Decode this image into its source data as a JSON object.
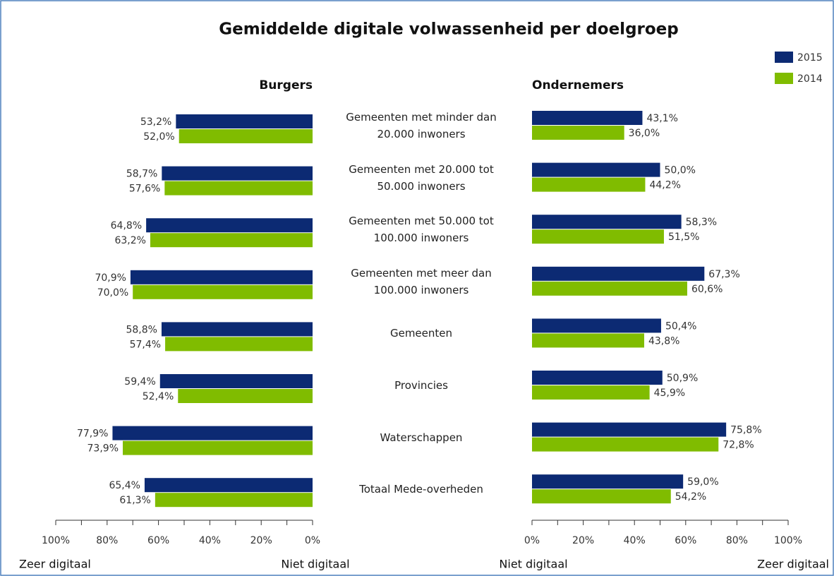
{
  "chart_data": {
    "type": "butterfly",
    "title": "Gemiddelde digitale volwassenheid per doelgroep",
    "categories": [
      "Gemeenten met minder dan 20.000 inwoners",
      "Gemeenten met 20.000 tot 50.000 inwoners",
      "Gemeenten met 50.000 tot 100.000 inwoners",
      "Gemeenten met meer dan 100.000 inwoners",
      "Gemeenten",
      "Provincies",
      "Waterschappen",
      "Totaal Mede-overheden"
    ],
    "panels": [
      {
        "title": "Burgers",
        "direction": "left",
        "xlim": [
          0,
          100
        ],
        "xticks": [
          {
            "value": 0,
            "label": "0%"
          },
          {
            "value": 20,
            "label": "20%"
          },
          {
            "value": 40,
            "label": "40%"
          },
          {
            "value": 60,
            "label": "60%"
          },
          {
            "value": 80,
            "label": "80%"
          },
          {
            "value": 100,
            "label": "100%"
          }
        ],
        "minor_xticks": [
          10,
          30,
          50,
          70,
          90
        ],
        "xlabel_min": "Niet digitaal",
        "xlabel_max": "Zeer digitaal",
        "series": [
          {
            "name": "2015",
            "color": "#0c2a73",
            "values": [
              53.2,
              58.7,
              64.8,
              70.9,
              58.8,
              59.4,
              77.9,
              65.4
            ],
            "value_labels": [
              "53,2%",
              "58,7%",
              "64,8%",
              "70,9%",
              "58,8%",
              "59,4%",
              "77,9%",
              "65,4%"
            ]
          },
          {
            "name": "2014",
            "color": "#80bc00",
            "values": [
              52.0,
              57.6,
              63.2,
              70.0,
              57.4,
              52.4,
              73.9,
              61.3
            ],
            "value_labels": [
              "52,0%",
              "57,6%",
              "63,2%",
              "70,0%",
              "57,4%",
              "52,4%",
              "73,9%",
              "61,3%"
            ]
          }
        ]
      },
      {
        "title": "Ondernemers",
        "direction": "right",
        "xlim": [
          0,
          100
        ],
        "xticks": [
          {
            "value": 0,
            "label": "0%"
          },
          {
            "value": 20,
            "label": "20%"
          },
          {
            "value": 40,
            "label": "40%"
          },
          {
            "value": 60,
            "label": "60%"
          },
          {
            "value": 80,
            "label": "80%"
          },
          {
            "value": 100,
            "label": "100%"
          }
        ],
        "minor_xticks": [
          10,
          30,
          50,
          70,
          90
        ],
        "xlabel_min": "Niet digitaal",
        "xlabel_max": "Zeer digitaal",
        "series": [
          {
            "name": "2015",
            "color": "#0c2a73",
            "values": [
              43.1,
              50.0,
              58.3,
              67.3,
              50.4,
              50.9,
              75.8,
              59.0
            ],
            "value_labels": [
              "43,1%",
              "50,0%",
              "58,3%",
              "67,3%",
              "50,4%",
              "50,9%",
              "75,8%",
              "59,0%"
            ]
          },
          {
            "name": "2014",
            "color": "#80bc00",
            "values": [
              36.0,
              44.2,
              51.5,
              60.6,
              43.8,
              45.9,
              72.8,
              54.2
            ],
            "value_labels": [
              "36,0%",
              "44,2%",
              "51,5%",
              "60,6%",
              "43,8%",
              "45,9%",
              "72,8%",
              "54,2%"
            ]
          }
        ]
      }
    ]
  }
}
